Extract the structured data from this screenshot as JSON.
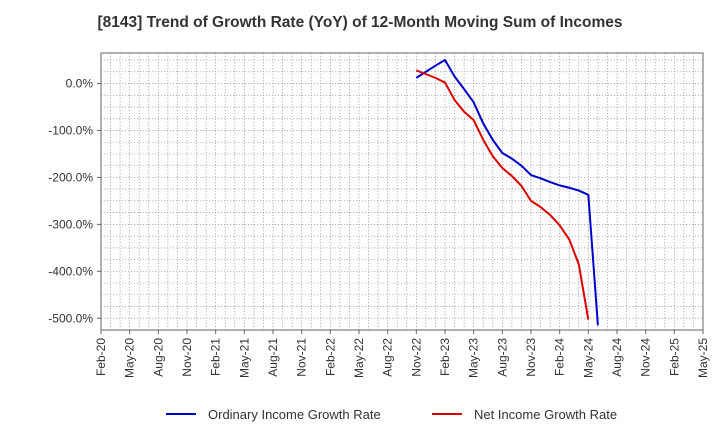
{
  "chart_data": {
    "type": "line",
    "title": "[8143]  Trend of Growth Rate (YoY) of 12-Month Moving Sum of Incomes",
    "xlabel": "",
    "ylabel": "",
    "y_unit": "%",
    "ylim": [
      -525,
      65
    ],
    "y_ticks": [
      {
        "value": 0,
        "label": "0.0%"
      },
      {
        "value": -100,
        "label": "-100.0%"
      },
      {
        "value": -200,
        "label": "-200.0%"
      },
      {
        "value": -300,
        "label": "-300.0%"
      },
      {
        "value": -400,
        "label": "-400.0%"
      },
      {
        "value": -500,
        "label": "-500.0%"
      }
    ],
    "x_ticks": [
      "Feb-20",
      "May-20",
      "Aug-20",
      "Nov-20",
      "Feb-21",
      "May-21",
      "Aug-21",
      "Nov-21",
      "Feb-22",
      "May-22",
      "Aug-22",
      "Nov-22",
      "Feb-23",
      "May-23",
      "Aug-23",
      "Nov-23",
      "Feb-24",
      "May-24",
      "Aug-24",
      "Nov-24",
      "Feb-25",
      "May-25"
    ],
    "x_start": "2020-02",
    "x_end": "2025-05",
    "grid": true,
    "legend_position": "bottom",
    "series": [
      {
        "name": "Ordinary Income Growth Rate",
        "color": "#0000cc",
        "points": [
          [
            "2022-11",
            12
          ],
          [
            "2022-12",
            25
          ],
          [
            "2023-01",
            38
          ],
          [
            "2023-02",
            50
          ],
          [
            "2023-03",
            15
          ],
          [
            "2023-04",
            -12
          ],
          [
            "2023-05",
            -40
          ],
          [
            "2023-06",
            -85
          ],
          [
            "2023-07",
            -120
          ],
          [
            "2023-08",
            -148
          ],
          [
            "2023-09",
            -160
          ],
          [
            "2023-10",
            -175
          ],
          [
            "2023-11",
            -195
          ],
          [
            "2023-12",
            -202
          ],
          [
            "2024-01",
            -210
          ],
          [
            "2024-02",
            -217
          ],
          [
            "2024-03",
            -222
          ],
          [
            "2024-04",
            -228
          ],
          [
            "2024-05",
            -237
          ],
          [
            "2024-06",
            -515
          ]
        ]
      },
      {
        "name": "Net Income Growth Rate",
        "color": "#dd0000",
        "points": [
          [
            "2022-11",
            28
          ],
          [
            "2022-12",
            20
          ],
          [
            "2023-01",
            12
          ],
          [
            "2023-02",
            2
          ],
          [
            "2023-03",
            -35
          ],
          [
            "2023-04",
            -60
          ],
          [
            "2023-05",
            -78
          ],
          [
            "2023-06",
            -120
          ],
          [
            "2023-07",
            -155
          ],
          [
            "2023-08",
            -180
          ],
          [
            "2023-09",
            -197
          ],
          [
            "2023-10",
            -218
          ],
          [
            "2023-11",
            -250
          ],
          [
            "2023-12",
            -263
          ],
          [
            "2024-01",
            -280
          ],
          [
            "2024-02",
            -302
          ],
          [
            "2024-03",
            -332
          ],
          [
            "2024-04",
            -385
          ],
          [
            "2024-05",
            -503
          ]
        ]
      }
    ]
  }
}
